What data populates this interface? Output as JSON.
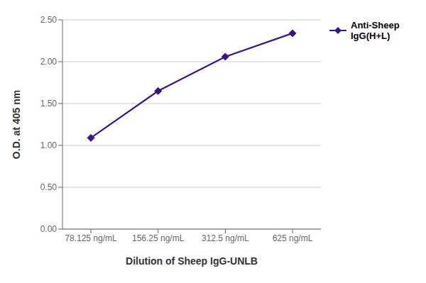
{
  "chart_data": {
    "type": "line",
    "categories": [
      "78.125 ng/mL",
      "156.25 ng/mL",
      "312.5 ng/mL",
      "625 ng/mL"
    ],
    "series": [
      {
        "name": "Anti-Sheep\nIgG(H+L)",
        "color": "#3a1490",
        "marker": "diamond",
        "values": [
          1.09,
          1.65,
          2.06,
          2.34
        ]
      }
    ],
    "x_label": "Dilution of Sheep IgG-UNLB",
    "y_label": "O.D. at 405 nm",
    "ylim": [
      0.0,
      2.5
    ],
    "yticks": [
      {
        "value": 0.0,
        "label": "0.00"
      },
      {
        "value": 0.5,
        "label": "0.50"
      },
      {
        "value": 1.0,
        "label": "1.00"
      },
      {
        "value": 1.5,
        "label": "1.50"
      },
      {
        "value": 2.0,
        "label": "2.00"
      },
      {
        "value": 2.5,
        "label": "2.50"
      }
    ],
    "grid": true,
    "legend": "right"
  }
}
